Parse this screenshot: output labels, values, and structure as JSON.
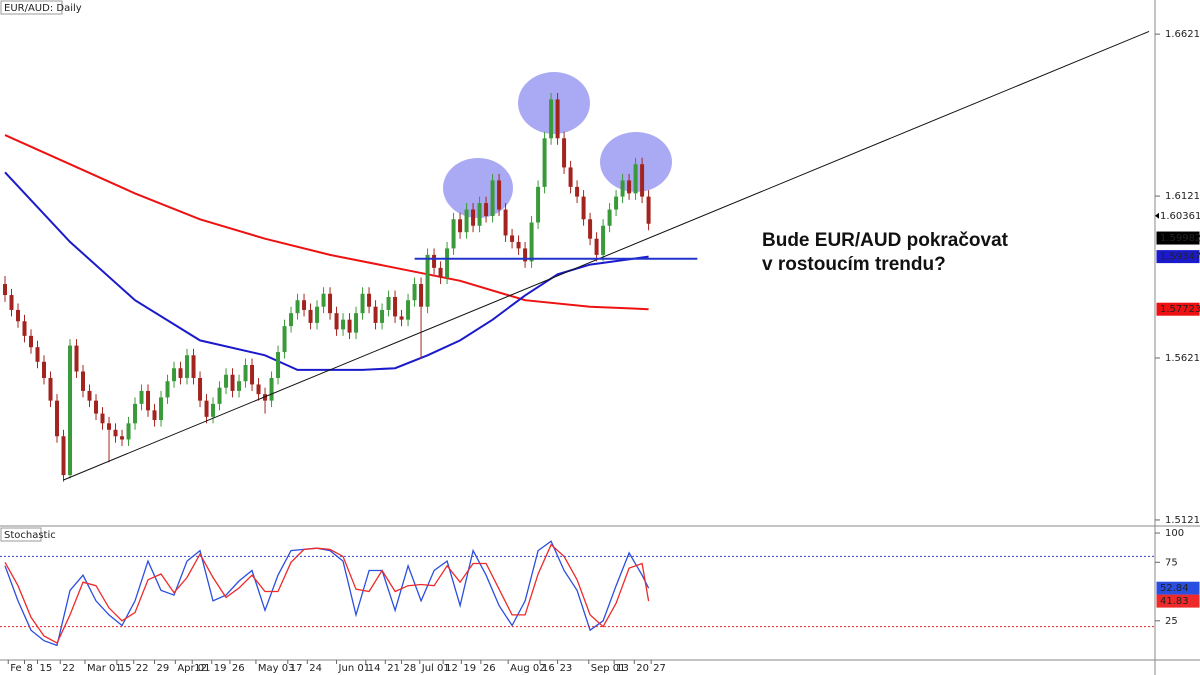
{
  "chart_data": [
    {
      "type": "candlestick",
      "title": "EUR/AUD: Daily",
      "up_color": "#3a9a3a",
      "down_color": "#a3241f",
      "xlim": [
        -0.77,
        176.9
      ],
      "ylim": [
        1.5106,
        1.6727
      ],
      "yticks": [
        1.51216,
        1.56216,
        1.61216,
        1.66216
      ],
      "ohlc": [
        [
          1.585,
          1.5875,
          1.5795,
          1.5816
        ],
        [
          1.5816,
          1.5835,
          1.575,
          1.577
        ],
        [
          1.577,
          1.579,
          1.5715,
          1.5735
        ],
        [
          1.5735,
          1.5755,
          1.567,
          1.569
        ],
        [
          1.569,
          1.571,
          1.5635,
          1.5655
        ],
        [
          1.5655,
          1.5675,
          1.559,
          1.561
        ],
        [
          1.561,
          1.563,
          1.554,
          1.556
        ],
        [
          1.556,
          1.558,
          1.547,
          1.549
        ],
        [
          1.549,
          1.551,
          1.536,
          1.538
        ],
        [
          1.538,
          1.54,
          1.524,
          1.526
        ],
        [
          1.526,
          1.568,
          1.525,
          1.566
        ],
        [
          1.566,
          1.568,
          1.556,
          1.558
        ],
        [
          1.558,
          1.56,
          1.55,
          1.552
        ],
        [
          1.552,
          1.554,
          1.547,
          1.549
        ],
        [
          1.549,
          1.551,
          1.543,
          1.545
        ],
        [
          1.545,
          1.547,
          1.54,
          1.542
        ],
        [
          1.542,
          1.544,
          1.53,
          1.54
        ],
        [
          1.54,
          1.542,
          1.536,
          1.538
        ],
        [
          1.538,
          1.54,
          1.535,
          1.537
        ],
        [
          1.537,
          1.544,
          1.535,
          1.542
        ],
        [
          1.542,
          1.55,
          1.54,
          1.548
        ],
        [
          1.548,
          1.554,
          1.546,
          1.552
        ],
        [
          1.552,
          1.554,
          1.544,
          1.546
        ],
        [
          1.546,
          1.548,
          1.541,
          1.543
        ],
        [
          1.543,
          1.552,
          1.541,
          1.55
        ],
        [
          1.55,
          1.557,
          1.548,
          1.555
        ],
        [
          1.555,
          1.561,
          1.553,
          1.559
        ],
        [
          1.559,
          1.561,
          1.554,
          1.556
        ],
        [
          1.556,
          1.565,
          1.554,
          1.563
        ],
        [
          1.563,
          1.565,
          1.554,
          1.556
        ],
        [
          1.556,
          1.558,
          1.547,
          1.549
        ],
        [
          1.549,
          1.551,
          1.542,
          1.544
        ],
        [
          1.544,
          1.55,
          1.542,
          1.548
        ],
        [
          1.548,
          1.555,
          1.546,
          1.553
        ],
        [
          1.553,
          1.559,
          1.551,
          1.557
        ],
        [
          1.557,
          1.559,
          1.55,
          1.552
        ],
        [
          1.552,
          1.557,
          1.55,
          1.555
        ],
        [
          1.555,
          1.562,
          1.553,
          1.56
        ],
        [
          1.56,
          1.562,
          1.552,
          1.554
        ],
        [
          1.554,
          1.556,
          1.549,
          1.551
        ],
        [
          1.551,
          1.553,
          1.545,
          1.549
        ],
        [
          1.549,
          1.558,
          1.547,
          1.556
        ],
        [
          1.556,
          1.566,
          1.554,
          1.564
        ],
        [
          1.564,
          1.574,
          1.562,
          1.572
        ],
        [
          1.572,
          1.578,
          1.57,
          1.576
        ],
        [
          1.576,
          1.582,
          1.574,
          1.58
        ],
        [
          1.58,
          1.582,
          1.575,
          1.577
        ],
        [
          1.577,
          1.579,
          1.571,
          1.573
        ],
        [
          1.573,
          1.58,
          1.571,
          1.578
        ],
        [
          1.578,
          1.584,
          1.576,
          1.582
        ],
        [
          1.582,
          1.584,
          1.574,
          1.576
        ],
        [
          1.576,
          1.578,
          1.569,
          1.571
        ],
        [
          1.571,
          1.576,
          1.569,
          1.574
        ],
        [
          1.574,
          1.576,
          1.568,
          1.57
        ],
        [
          1.57,
          1.578,
          1.568,
          1.576
        ],
        [
          1.576,
          1.584,
          1.574,
          1.582
        ],
        [
          1.582,
          1.584,
          1.576,
          1.578
        ],
        [
          1.578,
          1.58,
          1.571,
          1.573
        ],
        [
          1.573,
          1.579,
          1.571,
          1.577
        ],
        [
          1.577,
          1.583,
          1.575,
          1.581
        ],
        [
          1.581,
          1.583,
          1.573,
          1.575
        ],
        [
          1.575,
          1.577,
          1.572,
          1.574
        ],
        [
          1.574,
          1.582,
          1.572,
          1.58
        ],
        [
          1.58,
          1.587,
          1.578,
          1.585
        ],
        [
          1.585,
          1.587,
          1.562,
          1.578
        ],
        [
          1.578,
          1.596,
          1.576,
          1.594
        ],
        [
          1.594,
          1.596,
          1.588,
          1.59
        ],
        [
          1.59,
          1.592,
          1.585,
          1.587
        ],
        [
          1.587,
          1.598,
          1.585,
          1.596
        ],
        [
          1.596,
          1.607,
          1.594,
          1.605
        ],
        [
          1.605,
          1.607,
          1.599,
          1.601
        ],
        [
          1.601,
          1.61,
          1.599,
          1.608
        ],
        [
          1.608,
          1.61,
          1.601,
          1.603
        ],
        [
          1.603,
          1.612,
          1.601,
          1.61
        ],
        [
          1.61,
          1.612,
          1.604,
          1.606
        ],
        [
          1.606,
          1.619,
          1.604,
          1.617
        ],
        [
          1.617,
          1.619,
          1.606,
          1.608
        ],
        [
          1.608,
          1.61,
          1.598,
          1.6
        ],
        [
          1.6,
          1.602,
          1.596,
          1.598
        ],
        [
          1.598,
          1.6,
          1.594,
          1.596
        ],
        [
          1.596,
          1.598,
          1.59,
          1.592
        ],
        [
          1.592,
          1.606,
          1.59,
          1.604
        ],
        [
          1.604,
          1.617,
          1.602,
          1.615
        ],
        [
          1.615,
          1.632,
          1.613,
          1.63
        ],
        [
          1.63,
          1.644,
          1.628,
          1.642
        ],
        [
          1.642,
          1.644,
          1.628,
          1.63
        ],
        [
          1.63,
          1.632,
          1.619,
          1.621
        ],
        [
          1.621,
          1.623,
          1.613,
          1.615
        ],
        [
          1.615,
          1.617,
          1.61,
          1.612
        ],
        [
          1.612,
          1.614,
          1.603,
          1.605
        ],
        [
          1.605,
          1.607,
          1.597,
          1.599
        ],
        [
          1.599,
          1.601,
          1.592,
          1.594
        ],
        [
          1.594,
          1.605,
          1.592,
          1.603
        ],
        [
          1.603,
          1.61,
          1.601,
          1.608
        ],
        [
          1.608,
          1.614,
          1.606,
          1.612
        ],
        [
          1.612,
          1.619,
          1.61,
          1.617
        ],
        [
          1.617,
          1.619,
          1.611,
          1.613
        ],
        [
          1.613,
          1.624,
          1.611,
          1.622
        ],
        [
          1.622,
          1.624,
          1.61,
          1.612
        ],
        [
          1.612,
          1.614,
          1.6016,
          1.60361
        ]
      ],
      "lines": [
        {
          "color": "#ee1111",
          "width": 2,
          "tag": true,
          "x": [
            0,
            10,
            20,
            30,
            40,
            50,
            60,
            70,
            80,
            90,
            99
          ],
          "values": [
            1.631,
            1.622,
            1.613,
            1.605,
            1.599,
            1.594,
            1.59,
            1.586,
            1.58,
            1.578,
            1.57723
          ]
        },
        {
          "color": "#1a1acc",
          "width": 2,
          "tag": true,
          "x": [
            0,
            10,
            20,
            30,
            40,
            45,
            55,
            60,
            65,
            70,
            75,
            80,
            85,
            90,
            99
          ],
          "values": [
            1.6195,
            1.598,
            1.58,
            1.5676,
            1.563,
            1.5585,
            1.5585,
            1.559,
            1.563,
            1.5676,
            1.574,
            1.5815,
            1.588,
            1.591,
            1.59347
          ]
        },
        {
          "color": "#111111",
          "width": 1,
          "tag": false,
          "x": [
            9,
            176
          ],
          "values": [
            1.5245,
            1.663
          ]
        },
        {
          "color": "#2233cc",
          "width": 2,
          "tag": false,
          "x": [
            63,
            106.5
          ],
          "values": [
            1.5928,
            1.5928
          ]
        }
      ],
      "marker_price": 1.59982,
      "annotation_lines": [
        "Bude EUR/AUD pokračovat",
        "v rostoucím trendu?"
      ]
    },
    {
      "type": "line",
      "title": "Stochastic",
      "xlim": [
        -0.77,
        176.9
      ],
      "ylim": [
        -8.5,
        104.3
      ],
      "yticks": [
        25,
        75,
        100
      ],
      "levels": [
        {
          "value": 80,
          "color": "#3344cc"
        },
        {
          "value": 20,
          "color": "#ee2222"
        }
      ],
      "x": [
        0,
        2,
        4,
        6,
        8,
        10,
        12,
        14,
        16,
        18,
        20,
        22,
        24,
        26,
        28,
        30,
        32,
        34,
        36,
        38,
        40,
        42,
        44,
        46,
        48,
        50,
        52,
        54,
        56,
        58,
        60,
        62,
        64,
        66,
        68,
        70,
        72,
        74,
        76,
        78,
        80,
        82,
        84,
        86,
        88,
        90,
        92,
        94,
        96,
        98,
        99
      ],
      "series": [
        {
          "color": "#2a4ee0",
          "values": [
            72,
            42,
            17,
            8,
            4,
            51,
            64,
            42,
            30,
            21,
            42,
            76,
            51,
            47,
            76,
            85,
            42,
            47,
            59,
            68,
            34,
            64,
            85,
            86,
            87,
            85,
            76,
            30,
            68,
            68,
            34,
            72,
            42,
            68,
            76,
            38,
            85,
            64,
            38,
            21,
            42,
            85,
            93,
            68,
            51,
            17,
            25,
            55,
            83,
            64,
            52.84
          ]
        },
        {
          "color": "#ee2a2a",
          "values": [
            75,
            55,
            28,
            12,
            6,
            30,
            58,
            55,
            36,
            25,
            32,
            60,
            65,
            49,
            62,
            82,
            62,
            45,
            53,
            64,
            50,
            50,
            75,
            86,
            87,
            86,
            80,
            52,
            50,
            68,
            50,
            55,
            56,
            55,
            72,
            58,
            74,
            74,
            52,
            30,
            30,
            65,
            90,
            80,
            60,
            30,
            20,
            40,
            70,
            74,
            41.83
          ]
        }
      ],
      "xticks": [
        {
          "value": 0.5,
          "label": "Fe"
        },
        {
          "value": 3,
          "label": "8"
        },
        {
          "value": 5,
          "label": "15"
        },
        {
          "value": 8.5,
          "label": "22"
        },
        {
          "value": 12.3,
          "label": "Mar 01"
        },
        {
          "value": 17.2,
          "label": "15"
        },
        {
          "value": 19.8,
          "label": "22"
        },
        {
          "value": 23,
          "label": "29"
        },
        {
          "value": 26.2,
          "label": "Apr 01"
        },
        {
          "value": 28.8,
          "label": "12"
        },
        {
          "value": 31.8,
          "label": "19"
        },
        {
          "value": 34.6,
          "label": "26"
        },
        {
          "value": 38.6,
          "label": "May 03"
        },
        {
          "value": 43.5,
          "label": "17"
        },
        {
          "value": 46.5,
          "label": "24"
        },
        {
          "value": 51,
          "label": "Jun 01"
        },
        {
          "value": 55.5,
          "label": "14"
        },
        {
          "value": 58.5,
          "label": "21"
        },
        {
          "value": 61,
          "label": "28"
        },
        {
          "value": 63.8,
          "label": "Jul 01"
        },
        {
          "value": 67.4,
          "label": "12"
        },
        {
          "value": 70.2,
          "label": "19"
        },
        {
          "value": 73.2,
          "label": "26"
        },
        {
          "value": 77.4,
          "label": "Aug 02"
        },
        {
          "value": 82.3,
          "label": "16"
        },
        {
          "value": 85,
          "label": "23"
        },
        {
          "value": 89.8,
          "label": "Sep 01"
        },
        {
          "value": 93.7,
          "label": "13"
        },
        {
          "value": 96.8,
          "label": "20"
        },
        {
          "value": 99.4,
          "label": "27"
        }
      ]
    }
  ]
}
